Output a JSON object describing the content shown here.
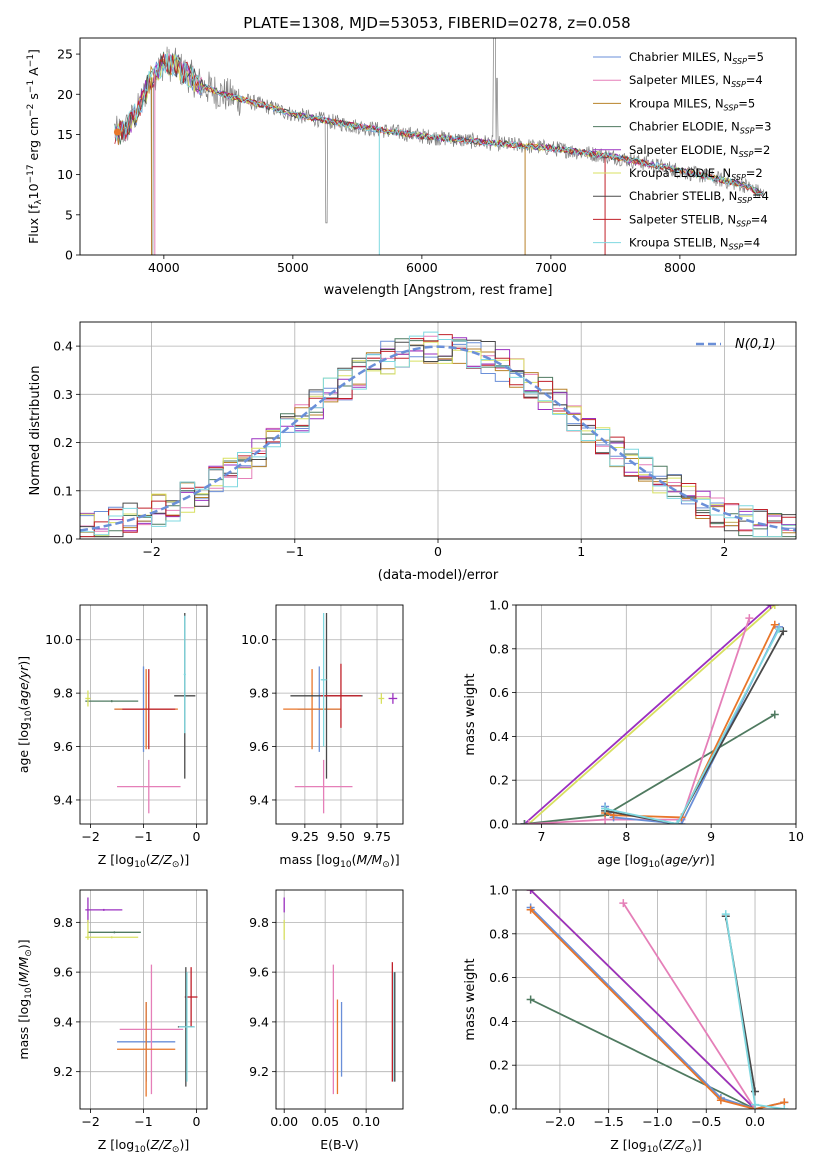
{
  "title": "PLATE=1308, MJD=53053, FIBERID=0278, z=0.058",
  "colors": {
    "chab_miles": "#6a8fd8",
    "salp_miles": "#e57fb8",
    "krou_miles": "#b8822a",
    "chab_elodie": "#4f7a60",
    "salp_elodie": "#9b30c0",
    "krou_elodie": "#d8e060",
    "chab_stelib": "#4a4a4a",
    "salp_stelib": "#c0202a",
    "krou_stelib": "#7fd8e0",
    "orange": "#e8762a",
    "normal": "#6a8fd8"
  },
  "chart_data": [
    {
      "type": "line",
      "title": "PLATE=1308, MJD=53053, FIBERID=0278, z=0.058",
      "xlabel": "wavelength [Angstrom, rest frame]",
      "ylabel": "Flux [f_λ 10^-17 erg cm^-2 s^-1 A^-1]",
      "xlim": [
        3350,
        8900
      ],
      "ylim": [
        0,
        27
      ],
      "xticks": [
        4000,
        5000,
        6000,
        7000,
        8000
      ],
      "yticks": [
        0,
        5,
        10,
        15,
        20,
        25
      ],
      "grid": false,
      "legend_position": "top-right",
      "legend": [
        {
          "label": "Chabrier MILES, N",
          "sub": "SSP",
          "value": "=5",
          "color": "#6a8fd8"
        },
        {
          "label": "Salpeter MILES, N",
          "sub": "SSP",
          "value": "=4",
          "color": "#e57fb8"
        },
        {
          "label": "Kroupa MILES, N",
          "sub": "SSP",
          "value": "=5",
          "color": "#b8822a"
        },
        {
          "label": "Chabrier ELODIE, N",
          "sub": "SSP",
          "value": "=3",
          "color": "#4f7a60"
        },
        {
          "label": "Salpeter ELODIE, N",
          "sub": "SSP",
          "value": "=2",
          "color": "#9b30c0"
        },
        {
          "label": "Kroupa ELODIE, N",
          "sub": "SSP",
          "value": "=2",
          "color": "#d8e060"
        },
        {
          "label": "Chabrier STELIB, N",
          "sub": "SSP",
          "value": "=4",
          "color": "#4a4a4a"
        },
        {
          "label": "Salpeter STELIB, N",
          "sub": "SSP",
          "value": "=4",
          "color": "#c0202a"
        },
        {
          "label": "Kroupa STELIB, N",
          "sub": "SSP",
          "value": "=4",
          "color": "#7fd8e0"
        }
      ],
      "continuum": {
        "x": [
          3620,
          3700,
          3800,
          3900,
          4000,
          4100,
          4300,
          4500,
          4800,
          5000,
          5500,
          6000,
          6500,
          7000,
          7500,
          8000,
          8500,
          8650
        ],
        "y": [
          15,
          15.5,
          18,
          22,
          24,
          23.5,
          21,
          19.8,
          18.5,
          17.5,
          16,
          14.8,
          14,
          13.3,
          12.2,
          10.5,
          8.7,
          7.5
        ]
      }
    },
    {
      "type": "step",
      "xlabel": "(data-model)/error",
      "ylabel": "Normed distribution",
      "xlim": [
        -2.5,
        2.5
      ],
      "ylim": [
        0,
        0.45
      ],
      "xticks": [
        -2,
        -1,
        0,
        1,
        2
      ],
      "yticks": [
        0.0,
        0.1,
        0.2,
        0.3,
        0.4
      ],
      "grid": true,
      "legend_position": "top-right",
      "legend_label": "N(0,1)",
      "bin_width": 0.1
    },
    {
      "type": "scatter",
      "xlabel": "Z [log10(Z/Z⊙)]",
      "ylabel": "age [log10(age/yr)]",
      "xlim": [
        -2.2,
        0.2
      ],
      "ylim": [
        9.31,
        10.13
      ],
      "xticks": [
        -2,
        -1,
        0
      ],
      "yticks": [
        9.4,
        9.6,
        9.8,
        10.0
      ],
      "points": [
        {
          "x": -1.0,
          "y": 9.74,
          "xerr": 0.55,
          "yerr": 0.16,
          "color": "#6a8fd8"
        },
        {
          "x": -0.9,
          "y": 9.45,
          "xerr": 0.6,
          "yerr": 0.1,
          "color": "#e57fb8"
        },
        {
          "x": -0.95,
          "y": 9.74,
          "xerr": 0.6,
          "yerr": 0.15,
          "color": "#e8762a"
        },
        {
          "x": -1.6,
          "y": 9.77,
          "xerr": 0.5,
          "yerr": 0.0,
          "color": "#4f7a60"
        },
        {
          "x": -2.05,
          "y": 9.78,
          "xerr": 0.05,
          "yerr": 0.03,
          "color": "#d8e060"
        },
        {
          "x": -0.22,
          "y": 9.79,
          "xerr": 0.2,
          "yerr": 0.31,
          "color": "#4a4a4a"
        },
        {
          "x": -0.9,
          "y": 9.74,
          "xerr": 0.5,
          "yerr": 0.15,
          "color": "#c0202a"
        },
        {
          "x": -0.22,
          "y": 9.87,
          "xerr": 0.02,
          "yerr": 0.22,
          "color": "#7fd8e0"
        }
      ]
    },
    {
      "type": "scatter",
      "xlabel": "mass [log10(M/M⊙)]",
      "ylabel": "",
      "xlim": [
        9.05,
        9.93
      ],
      "ylim": [
        9.31,
        10.13
      ],
      "xticks": [
        9.25,
        9.5,
        9.75
      ],
      "yticks": [
        9.4,
        9.6,
        9.8,
        10.0
      ],
      "points": [
        {
          "x": 9.35,
          "y": 9.74,
          "xerr": 0.15,
          "yerr": 0.16,
          "color": "#6a8fd8"
        },
        {
          "x": 9.38,
          "y": 9.45,
          "xerr": 0.2,
          "yerr": 0.1,
          "color": "#e57fb8"
        },
        {
          "x": 9.3,
          "y": 9.74,
          "xerr": 0.2,
          "yerr": 0.15,
          "color": "#e8762a"
        },
        {
          "x": 9.4,
          "y": 9.79,
          "xerr": 0.25,
          "yerr": 0.31,
          "color": "#4a4a4a"
        },
        {
          "x": 9.5,
          "y": 9.79,
          "xerr": 0.14,
          "yerr": 0.12,
          "color": "#c0202a"
        },
        {
          "x": 9.78,
          "y": 9.78,
          "xerr": 0.02,
          "yerr": 0.02,
          "color": "#d8e060"
        },
        {
          "x": 9.86,
          "y": 9.78,
          "xerr": 0.03,
          "yerr": 0.02,
          "color": "#9b30c0"
        },
        {
          "x": 9.38,
          "y": 9.85,
          "xerr": 0.02,
          "yerr": 0.25,
          "color": "#7fd8e0"
        }
      ]
    },
    {
      "type": "line",
      "xlabel": "age [log10(age/yr)]",
      "ylabel": "mass weight",
      "xlim": [
        6.7,
        10.0
      ],
      "ylim": [
        0,
        1
      ],
      "xticks": [
        7,
        8,
        9,
        10
      ],
      "yticks": [
        0.0,
        0.2,
        0.4,
        0.6,
        0.8,
        1.0
      ],
      "grid": true,
      "series": [
        {
          "color": "#d8e060",
          "x": [
            6.85,
            9.75
          ],
          "y": [
            0,
            1.0
          ]
        },
        {
          "color": "#9b30c0",
          "x": [
            6.8,
            9.7
          ],
          "y": [
            0,
            1.0
          ]
        },
        {
          "color": "#4f7a60",
          "x": [
            6.8,
            7.75,
            9.75
          ],
          "y": [
            0,
            0.04,
            0.5
          ]
        },
        {
          "color": "#e57fb8",
          "x": [
            6.85,
            7.75,
            8.65,
            9.45
          ],
          "y": [
            0,
            0.02,
            0.02,
            0.94
          ]
        },
        {
          "color": "#6a8fd8",
          "x": [
            7.75,
            7.85,
            8.65,
            9.8
          ],
          "y": [
            0.08,
            0.03,
            0.0,
            0.9
          ]
        },
        {
          "color": "#e8762a",
          "x": [
            7.75,
            7.85,
            8.65,
            9.75
          ],
          "y": [
            0.05,
            0.04,
            0.03,
            0.91
          ]
        },
        {
          "color": "#4a4a4a",
          "x": [
            7.75,
            8.6,
            9.85
          ],
          "y": [
            0.06,
            0.0,
            0.88
          ]
        },
        {
          "color": "#7fd8e0",
          "x": [
            7.75,
            8.6,
            9.8
          ],
          "y": [
            0.07,
            0.0,
            0.89
          ]
        }
      ]
    },
    {
      "type": "scatter",
      "xlabel": "Z [log10(Z/Z⊙)]",
      "ylabel": "mass [log10(M/M⊙)]",
      "xlim": [
        -2.2,
        0.2
      ],
      "ylim": [
        9.05,
        9.93
      ],
      "xticks": [
        -2,
        -1,
        0
      ],
      "yticks": [
        9.2,
        9.4,
        9.6,
        9.8
      ],
      "points": [
        {
          "x": -2.05,
          "y": 9.85,
          "xerr": 0.0,
          "yerr": 0.05,
          "color": "#9b30c0"
        },
        {
          "x": -1.75,
          "y": 9.85,
          "xerr": 0.35,
          "yerr": 0.0,
          "color": "#9b30c0"
        },
        {
          "x": -1.55,
          "y": 9.76,
          "xerr": 0.5,
          "yerr": 0.0,
          "color": "#4f7a60"
        },
        {
          "x": -1.6,
          "y": 9.74,
          "xerr": 0.5,
          "yerr": 0.0,
          "color": "#d8e060"
        },
        {
          "x": -2.05,
          "y": 9.77,
          "xerr": 0.0,
          "yerr": 0.04,
          "color": "#d8e060"
        },
        {
          "x": -0.95,
          "y": 9.32,
          "xerr": 0.55,
          "yerr": 0.16,
          "color": "#6a8fd8"
        },
        {
          "x": -0.85,
          "y": 9.37,
          "xerr": 0.6,
          "yerr": 0.26,
          "color": "#e57fb8"
        },
        {
          "x": -0.95,
          "y": 9.29,
          "xerr": 0.55,
          "yerr": 0.19,
          "color": "#e8762a"
        },
        {
          "x": -0.1,
          "y": 9.5,
          "xerr": 0.12,
          "yerr": 0.12,
          "color": "#c0202a"
        },
        {
          "x": -0.2,
          "y": 9.38,
          "xerr": 0.15,
          "yerr": 0.24,
          "color": "#4a4a4a"
        },
        {
          "x": -0.18,
          "y": 9.38,
          "xerr": 0.15,
          "yerr": 0.22,
          "color": "#7fd8e0"
        }
      ]
    },
    {
      "type": "scatter",
      "xlabel": "E(B-V)",
      "ylabel": "",
      "xlim": [
        -0.01,
        0.145
      ],
      "ylim": [
        9.05,
        9.93
      ],
      "xticks": [
        0.0,
        0.05,
        0.1
      ],
      "yticks": [
        9.2,
        9.4,
        9.6,
        9.8
      ],
      "points": [
        {
          "x": 0.0,
          "y": 9.87,
          "xerr": 0,
          "yerr": 0.03,
          "color": "#9b30c0"
        },
        {
          "x": 0.0,
          "y": 9.77,
          "xerr": 0,
          "yerr": 0.04,
          "color": "#d8e060"
        },
        {
          "x": 0.06,
          "y": 9.37,
          "xerr": 0,
          "yerr": 0.26,
          "color": "#e57fb8"
        },
        {
          "x": 0.065,
          "y": 9.3,
          "xerr": 0,
          "yerr": 0.19,
          "color": "#e8762a"
        },
        {
          "x": 0.07,
          "y": 9.33,
          "xerr": 0,
          "yerr": 0.15,
          "color": "#6a8fd8"
        },
        {
          "x": 0.132,
          "y": 9.4,
          "xerr": 0,
          "yerr": 0.24,
          "color": "#c0202a"
        },
        {
          "x": 0.134,
          "y": 9.38,
          "xerr": 0,
          "yerr": 0.22,
          "color": "#7fd8e0"
        },
        {
          "x": 0.135,
          "y": 9.38,
          "xerr": 0,
          "yerr": 0.22,
          "color": "#4a4a4a"
        }
      ]
    },
    {
      "type": "line",
      "xlabel": "Z [log10(Z/Z⊙)]",
      "ylabel": "mass weight",
      "xlim": [
        -2.45,
        0.42
      ],
      "ylim": [
        0,
        1
      ],
      "xticks": [
        -2.0,
        -1.5,
        -1.0,
        -0.5,
        0.0
      ],
      "yticks": [
        0.0,
        0.2,
        0.4,
        0.6,
        0.8,
        1.0
      ],
      "grid": true,
      "series": [
        {
          "color": "#d8e060",
          "x": [
            -2.3,
            0.0
          ],
          "y": [
            1.0,
            0.0
          ]
        },
        {
          "color": "#9b30c0",
          "x": [
            -2.3,
            0.0
          ],
          "y": [
            1.0,
            0.0
          ]
        },
        {
          "color": "#4f7a60",
          "x": [
            -2.3,
            0.0
          ],
          "y": [
            0.5,
            0.0
          ]
        },
        {
          "color": "#e57fb8",
          "x": [
            -1.35,
            0.0
          ],
          "y": [
            0.94,
            0.0
          ]
        },
        {
          "color": "#6a8fd8",
          "x": [
            -2.3,
            -0.35,
            0.0,
            0.3
          ],
          "y": [
            0.92,
            0.05,
            0.0,
            0.03
          ]
        },
        {
          "color": "#e8762a",
          "x": [
            -2.3,
            -0.35,
            0.0,
            0.3
          ],
          "y": [
            0.91,
            0.04,
            0.0,
            0.03
          ]
        },
        {
          "color": "#4a4a4a",
          "x": [
            -0.3,
            0.0
          ],
          "y": [
            0.88,
            0.08
          ]
        },
        {
          "color": "#7fd8e0",
          "x": [
            -0.3,
            0.0,
            0.3
          ],
          "y": [
            0.89,
            0.02,
            0.0
          ]
        }
      ]
    }
  ]
}
